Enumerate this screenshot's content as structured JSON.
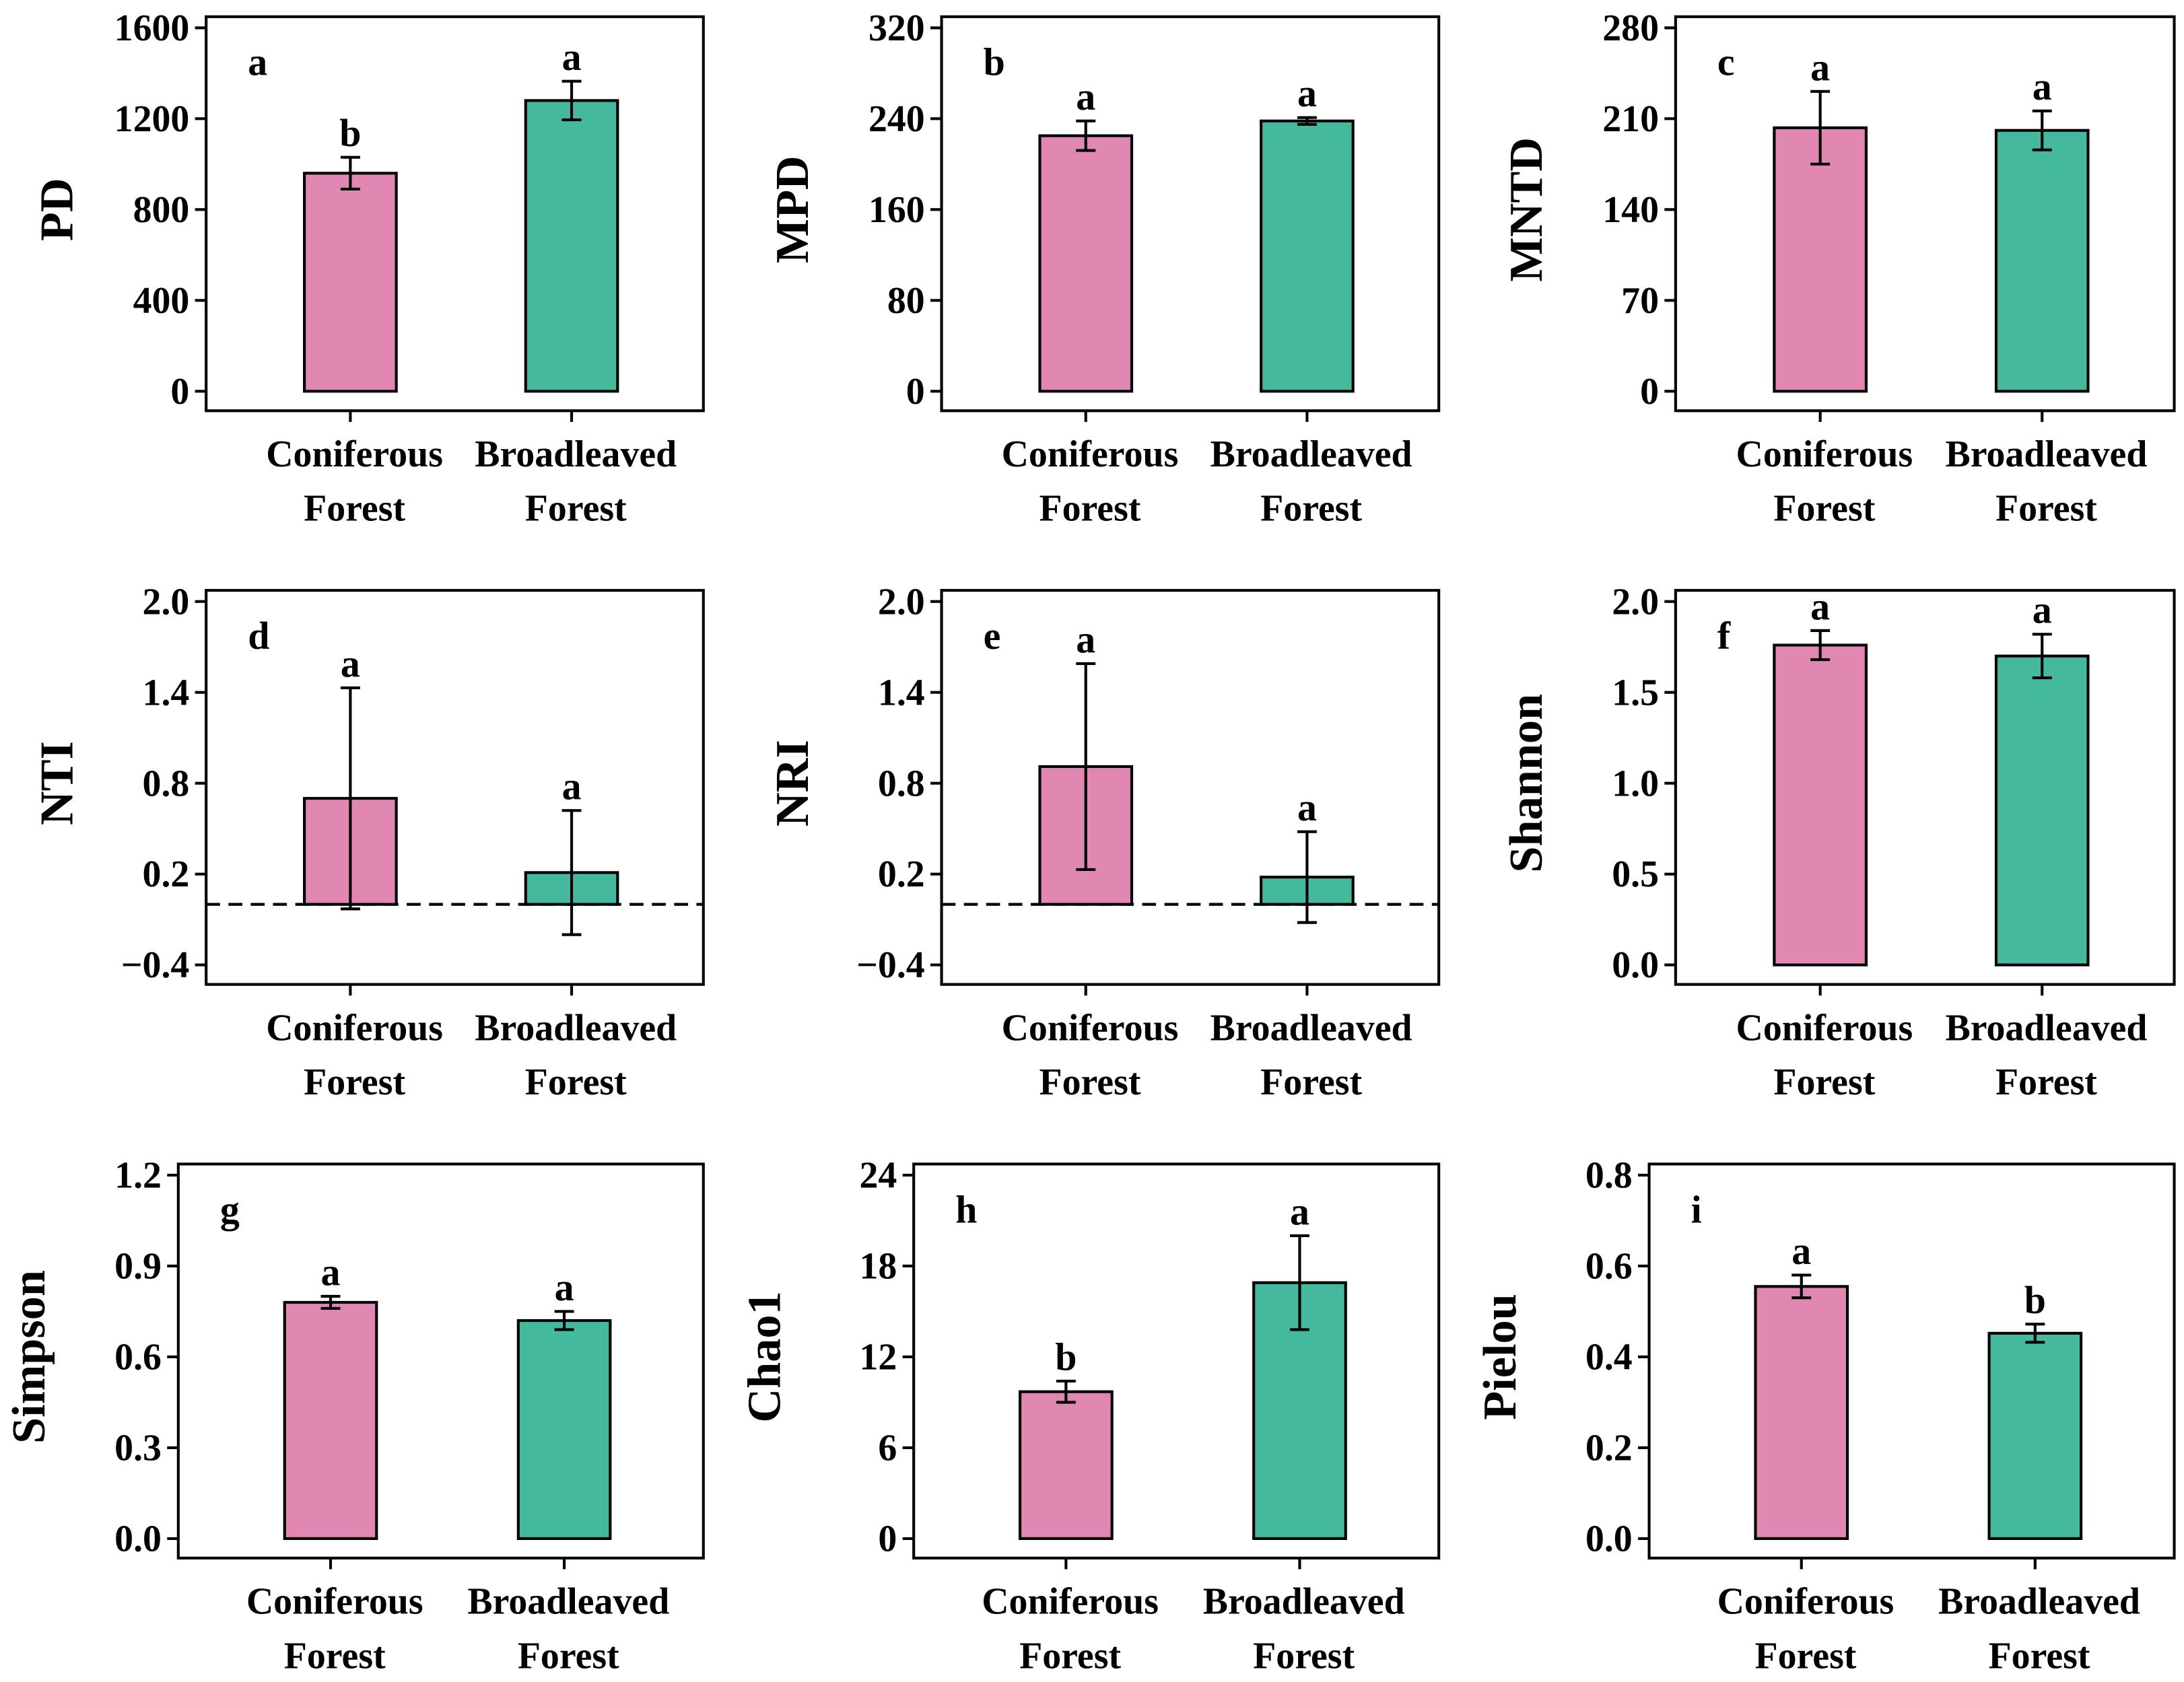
{
  "colors": {
    "coniferous": "#e088b1",
    "broadleaved": "#45b99d",
    "stroke": "#000000"
  },
  "chart_data": [
    {
      "type": "bar",
      "panel": "a",
      "ylabel": "PD",
      "categories": [
        "Coniferous Forest",
        "Broadleaved Forest"
      ],
      "category_lines": [
        [
          "Coniferous",
          "Forest"
        ],
        [
          "Broadleaved",
          "Forest"
        ]
      ],
      "values": [
        960,
        1280
      ],
      "errors": [
        70,
        85
      ],
      "letters": [
        "b",
        "a"
      ],
      "ylim": [
        0,
        1600
      ],
      "yticks": [
        0,
        400,
        800,
        1200,
        1600
      ],
      "ytick_labels": [
        "0",
        "400",
        "800",
        "1200",
        "1600"
      ],
      "reference_line": null
    },
    {
      "type": "bar",
      "panel": "b",
      "ylabel": "MPD",
      "categories": [
        "Coniferous Forest",
        "Broadleaved Forest"
      ],
      "category_lines": [
        [
          "Coniferous",
          "Forest"
        ],
        [
          "Broadleaved",
          "Forest"
        ]
      ],
      "values": [
        225,
        238
      ],
      "errors": [
        13,
        3
      ],
      "letters": [
        "a",
        "a"
      ],
      "ylim": [
        0,
        320
      ],
      "yticks": [
        0,
        80,
        160,
        240,
        320
      ],
      "ytick_labels": [
        "0",
        "80",
        "160",
        "240",
        "320"
      ],
      "reference_line": null
    },
    {
      "type": "bar",
      "panel": "c",
      "ylabel": "MNTD",
      "categories": [
        "Coniferous Forest",
        "Broadleaved Forest"
      ],
      "category_lines": [
        [
          "Coniferous",
          "Forest"
        ],
        [
          "Broadleaved",
          "Forest"
        ]
      ],
      "values": [
        203,
        201
      ],
      "errors": [
        28,
        15
      ],
      "letters": [
        "a",
        "a"
      ],
      "ylim": [
        0,
        280
      ],
      "yticks": [
        0,
        70,
        140,
        210,
        280
      ],
      "ytick_labels": [
        "0",
        "70",
        "140",
        "210",
        "280"
      ],
      "reference_line": null
    },
    {
      "type": "bar",
      "panel": "d",
      "ylabel": "NTI",
      "categories": [
        "Coniferous Forest",
        "Broadleaved Forest"
      ],
      "category_lines": [
        [
          "Coniferous",
          "Forest"
        ],
        [
          "Broadleaved",
          "Forest"
        ]
      ],
      "values": [
        0.7,
        0.21
      ],
      "errors": [
        0.73,
        0.41
      ],
      "letters": [
        "a",
        "a"
      ],
      "ylim": [
        -0.4,
        2.0
      ],
      "yticks": [
        -0.4,
        0.2,
        0.8,
        1.4,
        2.0
      ],
      "ytick_labels": [
        "−0.4",
        "0.2",
        "0.8",
        "1.4",
        "2.0"
      ],
      "reference_line": 0
    },
    {
      "type": "bar",
      "panel": "e",
      "ylabel": "NRI",
      "categories": [
        "Coniferous Forest",
        "Broadleaved Forest"
      ],
      "category_lines": [
        [
          "Coniferous",
          "Forest"
        ],
        [
          "Broadleaved",
          "Forest"
        ]
      ],
      "values": [
        0.91,
        0.18
      ],
      "errors": [
        0.68,
        0.3
      ],
      "letters": [
        "a",
        "a"
      ],
      "ylim": [
        -0.4,
        2.0
      ],
      "yticks": [
        -0.4,
        0.2,
        0.8,
        1.4,
        2.0
      ],
      "ytick_labels": [
        "−0.4",
        "0.2",
        "0.8",
        "1.4",
        "2.0"
      ],
      "reference_line": 0
    },
    {
      "type": "bar",
      "panel": "f",
      "ylabel": "Shannon",
      "categories": [
        "Coniferous Forest",
        "Broadleaved Forest"
      ],
      "category_lines": [
        [
          "Coniferous",
          "Forest"
        ],
        [
          "Broadleaved",
          "Forest"
        ]
      ],
      "values": [
        1.76,
        1.7
      ],
      "errors": [
        0.08,
        0.12
      ],
      "letters": [
        "a",
        "a"
      ],
      "ylim": [
        0,
        2.0
      ],
      "yticks": [
        0,
        0.5,
        1.0,
        1.5,
        2.0
      ],
      "ytick_labels": [
        "0.0",
        "0.5",
        "1.0",
        "1.5",
        "2.0"
      ],
      "reference_line": null
    },
    {
      "type": "bar",
      "panel": "g",
      "ylabel": "Simpson",
      "categories": [
        "Coniferous Forest",
        "Broadleaved Forest"
      ],
      "category_lines": [
        [
          "Coniferous",
          "Forest"
        ],
        [
          "Broadleaved",
          "Forest"
        ]
      ],
      "values": [
        0.78,
        0.72
      ],
      "errors": [
        0.02,
        0.03
      ],
      "letters": [
        "a",
        "a"
      ],
      "ylim": [
        0,
        1.2
      ],
      "yticks": [
        0,
        0.3,
        0.6,
        0.9,
        1.2
      ],
      "ytick_labels": [
        "0.0",
        "0.3",
        "0.6",
        "0.9",
        "1.2"
      ],
      "reference_line": null
    },
    {
      "type": "bar",
      "panel": "h",
      "ylabel": "Chao1",
      "categories": [
        "Coniferous Forest",
        "Broadleaved Forest"
      ],
      "category_lines": [
        [
          "Coniferous",
          "Forest"
        ],
        [
          "Broadleaved",
          "Forest"
        ]
      ],
      "values": [
        9.7,
        16.9
      ],
      "errors": [
        0.7,
        3.1
      ],
      "letters": [
        "b",
        "a"
      ],
      "ylim": [
        0,
        24
      ],
      "yticks": [
        0,
        6,
        12,
        18,
        24
      ],
      "ytick_labels": [
        "0",
        "6",
        "12",
        "18",
        "24"
      ],
      "reference_line": null
    },
    {
      "type": "bar",
      "panel": "i",
      "ylabel": "Pielou",
      "categories": [
        "Coniferous Forest",
        "Broadleaved Forest"
      ],
      "category_lines": [
        [
          "Coniferous",
          "Forest"
        ],
        [
          "Broadleaved",
          "Forest"
        ]
      ],
      "values": [
        0.555,
        0.452
      ],
      "errors": [
        0.025,
        0.02
      ],
      "letters": [
        "a",
        "b"
      ],
      "ylim": [
        0,
        0.8
      ],
      "yticks": [
        0,
        0.2,
        0.4,
        0.6,
        0.8
      ],
      "ytick_labels": [
        "0.0",
        "0.2",
        "0.4",
        "0.6",
        "0.8"
      ],
      "reference_line": null
    }
  ]
}
